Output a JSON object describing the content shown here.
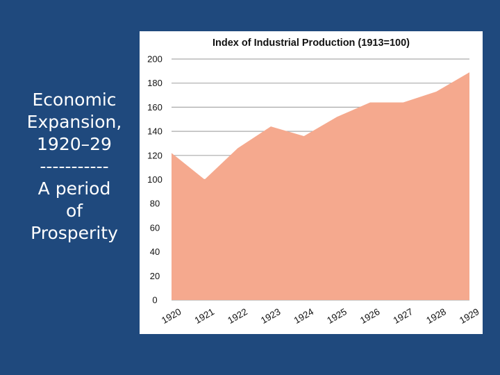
{
  "slide": {
    "background": "#1f497d",
    "side_lines": [
      "Economic",
      "Expansion,",
      "1920–29",
      "-----------",
      "A period",
      "of",
      "Prosperity"
    ]
  },
  "chart_data": {
    "type": "area",
    "title": "Index of Industrial Production (1913=100)",
    "x": [
      "1920",
      "1921",
      "1922",
      "1923",
      "1924",
      "1925",
      "1926",
      "1927",
      "1928",
      "1929"
    ],
    "values": [
      122,
      100,
      126,
      144,
      136,
      152,
      164,
      164,
      173,
      189
    ],
    "series": [
      {
        "name": "Index of Industrial Production",
        "values": [
          122,
          100,
          126,
          144,
          136,
          152,
          164,
          164,
          173,
          189
        ]
      }
    ],
    "xlabel": "",
    "ylabel": "",
    "ylim": [
      0,
      200
    ],
    "yticks": [
      0,
      20,
      40,
      60,
      80,
      100,
      120,
      140,
      160,
      180,
      200
    ],
    "grid": true,
    "fill_color": "#f5a98e",
    "grid_color": "#aaaaaa"
  }
}
